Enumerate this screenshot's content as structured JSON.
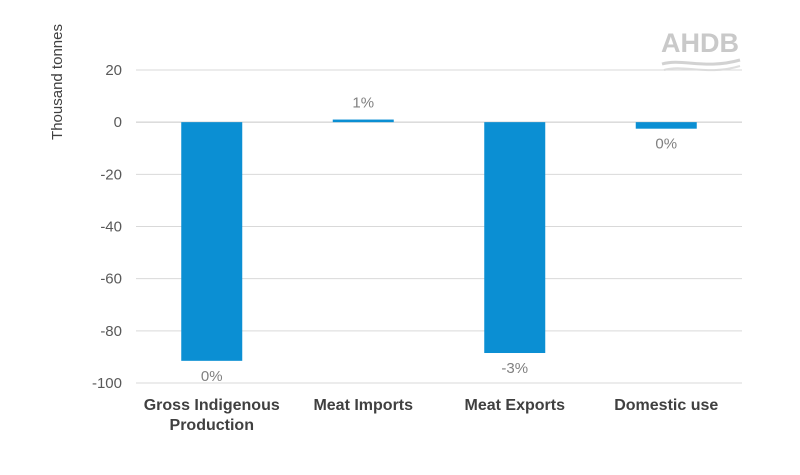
{
  "brand": {
    "logo_text": "AHDB"
  },
  "chart_data": {
    "type": "bar",
    "title": "",
    "xlabel": "",
    "ylabel": "Thousand tonnes",
    "ylim": [
      -100,
      20
    ],
    "yticks": [
      20,
      0,
      -20,
      -40,
      -60,
      -80,
      -100
    ],
    "grid": true,
    "bar_color": "#0b8fd3",
    "categories": [
      [
        "Gross Indigenous",
        "Production"
      ],
      [
        "Meat Imports"
      ],
      [
        "Meat Exports"
      ],
      [
        "Domestic use"
      ]
    ],
    "values": [
      -91.5,
      1,
      -88.5,
      -2.5
    ],
    "data_labels": [
      "0%",
      "1%",
      "-3%",
      "0%"
    ]
  }
}
